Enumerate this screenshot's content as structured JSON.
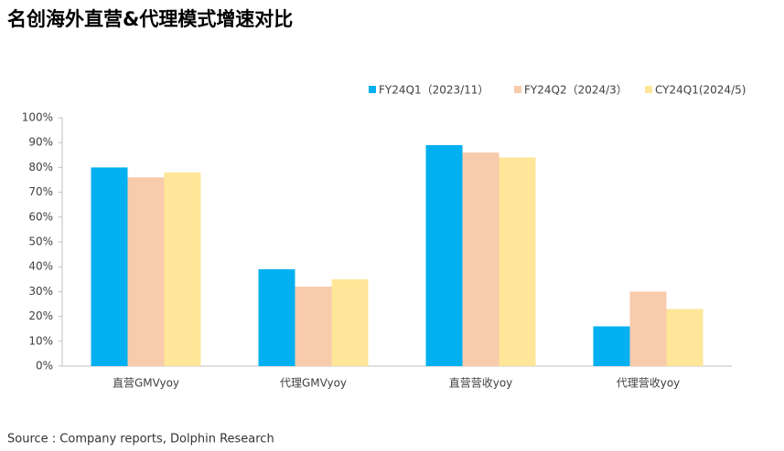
{
  "chart_data": {
    "type": "bar",
    "title": "名创海外直营&代理模式增速对比",
    "source": "Source : Company reports, Dolphin Research",
    "categories": [
      "直营GMVyoy",
      "代理GMVyoy",
      "直营营收yoy",
      "代理营收yoy"
    ],
    "series": [
      {
        "name": "FY24Q1（2023/11）",
        "color": "#00b0f0",
        "values": [
          80,
          39,
          89,
          16
        ]
      },
      {
        "name": "FY24Q2（2024/3）",
        "color": "#f8cbad",
        "values": [
          76,
          32,
          86,
          30
        ]
      },
      {
        "name": "CY24Q1(2024/5)",
        "color": "#ffe699",
        "values": [
          78,
          35,
          84,
          23
        ]
      }
    ],
    "ylim": [
      0,
      100
    ],
    "yticks": [
      {
        "value": 0,
        "label": "0%"
      },
      {
        "value": 10,
        "label": "10%"
      },
      {
        "value": 20,
        "label": "20%"
      },
      {
        "value": 30,
        "label": "30%"
      },
      {
        "value": 40,
        "label": "40%"
      },
      {
        "value": 50,
        "label": "50%"
      },
      {
        "value": 60,
        "label": "60%"
      },
      {
        "value": 70,
        "label": "70%"
      },
      {
        "value": 80,
        "label": "80%"
      },
      {
        "value": 90,
        "label": "90%"
      },
      {
        "value": 100,
        "label": "100%"
      }
    ],
    "legend": "top-right",
    "grid": false
  }
}
